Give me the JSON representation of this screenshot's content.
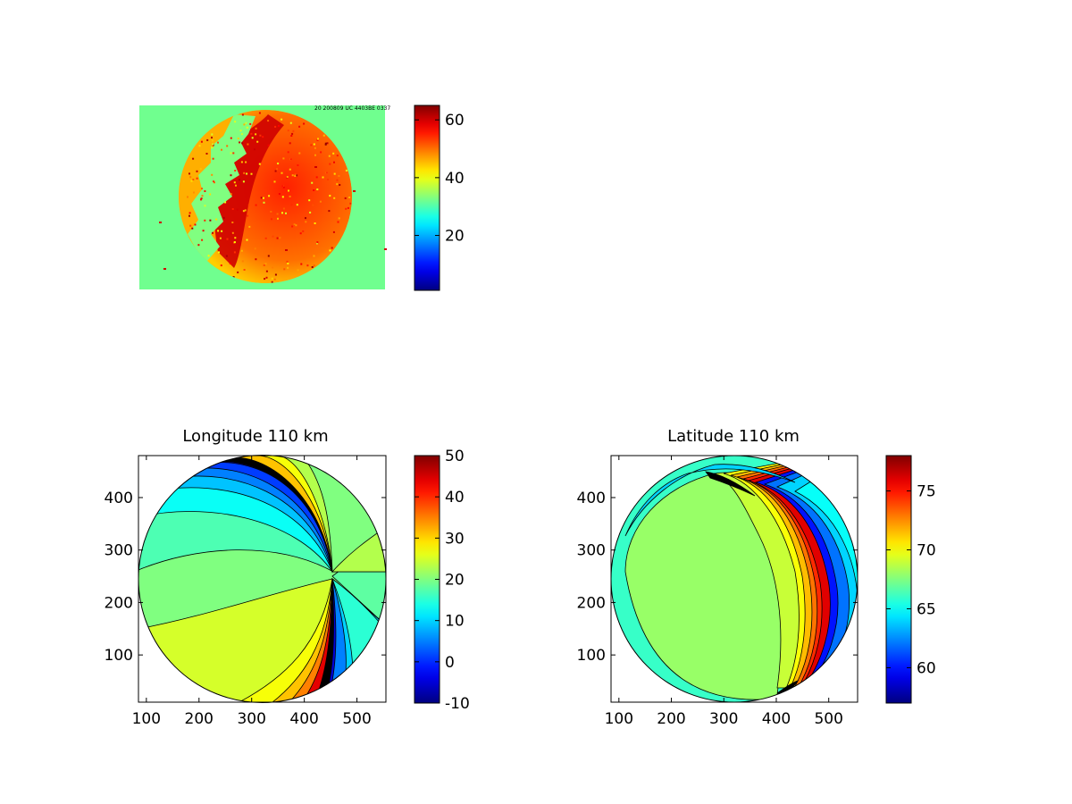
{
  "figure": {
    "background": "#ffffff"
  },
  "chart_data": [
    {
      "type": "heatmap",
      "title": "",
      "subtitle": "",
      "xlabel": "",
      "ylabel": "",
      "grid": false,
      "stamp_text": "20 200809 UC 4403BE 0337",
      "colorbar": {
        "colormap": "jet",
        "ticks": [
          20,
          40,
          60
        ],
        "range": [
          1,
          65
        ]
      },
      "background_value": 32,
      "disk_value_range": [
        38,
        62
      ]
    },
    {
      "type": "heatmap",
      "title": "Longitude 110 km",
      "xlabel": "",
      "ylabel": "",
      "xlim": [
        85,
        555
      ],
      "ylim": [
        10,
        480
      ],
      "x_ticks": [
        100,
        200,
        300,
        400,
        500
      ],
      "y_ticks": [
        100,
        200,
        300,
        400
      ],
      "grid": false,
      "disk": {
        "center": [
          320,
          245
        ],
        "radius": 235
      },
      "colorbar": {
        "colormap": "jet",
        "ticks": [
          -10,
          0,
          10,
          20,
          30,
          40,
          50
        ],
        "range": [
          -10,
          50
        ]
      },
      "contour_levels": [
        -10,
        -5,
        0,
        5,
        10,
        15,
        20,
        25,
        30,
        35,
        40,
        45,
        50
      ]
    },
    {
      "type": "heatmap",
      "title": "Latitude 110 km",
      "xlabel": "",
      "ylabel": "",
      "xlim": [
        85,
        555
      ],
      "ylim": [
        10,
        480
      ],
      "x_ticks": [
        100,
        200,
        300,
        400,
        500
      ],
      "y_ticks": [
        100,
        200,
        300,
        400
      ],
      "grid": false,
      "disk": {
        "center": [
          320,
          245
        ],
        "radius": 235
      },
      "colorbar": {
        "colormap": "jet",
        "ticks": [
          60,
          65,
          70,
          75
        ],
        "range": [
          57,
          78
        ]
      },
      "contour_levels": [
        58,
        60,
        62,
        64,
        66,
        68,
        70,
        72,
        74,
        76,
        78
      ]
    }
  ]
}
